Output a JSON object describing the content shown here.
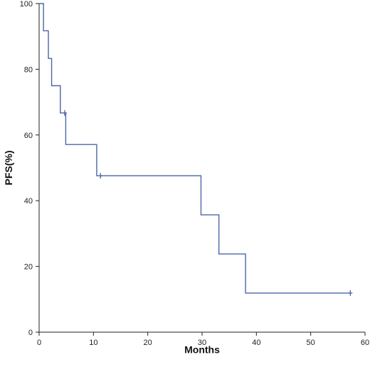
{
  "chart_data": {
    "type": "line",
    "title": "",
    "xlabel": "Months",
    "ylabel": "PFS(%)",
    "xlim": [
      0,
      60
    ],
    "ylim": [
      0,
      100
    ],
    "x_ticks": [
      0,
      10,
      20,
      30,
      40,
      50,
      60
    ],
    "y_ticks": [
      0,
      20,
      40,
      60,
      80,
      100
    ],
    "grid": false,
    "legend": "none",
    "step": true,
    "series": [
      {
        "color": "#4a67a8",
        "steps": [
          {
            "x": 0,
            "y": 100
          },
          {
            "x": 0.8,
            "y": 91.7
          },
          {
            "x": 1.7,
            "y": 83.3
          },
          {
            "x": 2.3,
            "y": 75.0
          },
          {
            "x": 3.9,
            "y": 66.7
          },
          {
            "x": 4.9,
            "y": 57.1
          },
          {
            "x": 10.6,
            "y": 47.6
          },
          {
            "x": 29.8,
            "y": 35.7
          },
          {
            "x": 33.1,
            "y": 23.8
          },
          {
            "x": 38.0,
            "y": 11.9
          },
          {
            "x": 57.3,
            "y": 11.9
          }
        ],
        "censored": [
          {
            "x": 4.7,
            "y": 66.7
          },
          {
            "x": 11.3,
            "y": 47.6
          },
          {
            "x": 57.3,
            "y": 11.9
          }
        ]
      }
    ]
  }
}
